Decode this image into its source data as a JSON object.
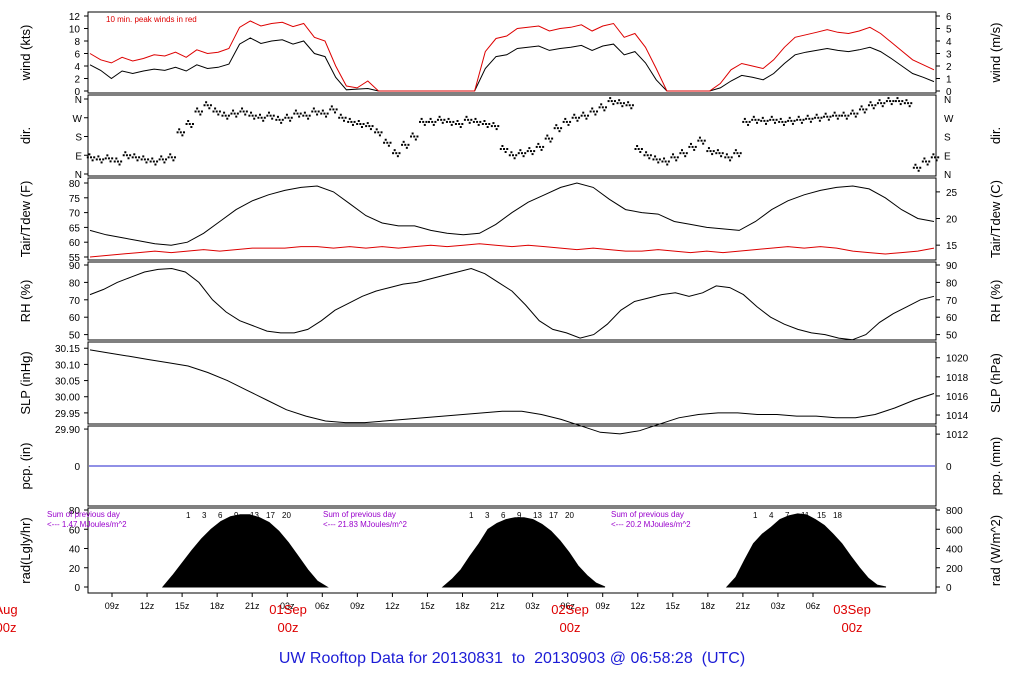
{
  "footer": {
    "title_prefix": "UW Rooftop Data for",
    "start": "20130831",
    "to_word": "to",
    "end": "20130903",
    "at_word": "@",
    "time": "06:58:28",
    "zone": "(UTC)"
  },
  "colors": {
    "frame": "#000000",
    "text": "#000000",
    "peak": "#dd0000",
    "tdew": "#dd0000",
    "precip": "#2222cc",
    "footer": "#1c1cd6",
    "date_labels": "#dd0000",
    "solar_notes": "#9900cc"
  },
  "chart_data": {
    "type": "line",
    "x_axis": {
      "tick_labels": [
        "09z",
        "12z",
        "15z",
        "18z",
        "21z",
        "03z",
        "06z",
        "09z",
        "12z",
        "15z",
        "18z",
        "21z",
        "03z",
        "06z",
        "09z",
        "12z",
        "15z",
        "18z",
        "21z",
        "03z",
        "06z"
      ],
      "date_labels": [
        {
          "line1": "Aug",
          "line2": "00z"
        },
        {
          "line1": "01Sep",
          "line2": "00z"
        },
        {
          "line1": "02Sep",
          "line2": "00z"
        },
        {
          "line1": "03Sep",
          "line2": "00z"
        }
      ]
    },
    "panels": [
      {
        "id": "wind",
        "type": "line",
        "ylabel_left": "wind (kts)",
        "ylabel_right": "wind (m/s)",
        "ylim": [
          0,
          12
        ],
        "yticks_left": [
          "0",
          "2",
          "4",
          "6",
          "8",
          "10",
          "12"
        ],
        "yticks_right": [
          "0",
          "1",
          "2",
          "3",
          "4",
          "5",
          "6"
        ],
        "annotation": "10 min. peak winds in red",
        "series": [
          {
            "values": [
              4.2,
              3.3,
              2,
              3.2,
              2.8,
              3.2,
              3.5,
              3.3,
              3.8,
              3.2,
              4.2,
              3.6,
              3.8,
              4.3,
              7.5,
              8.5,
              7.6,
              8,
              8.2,
              7.5,
              8,
              6,
              5.5,
              2.2,
              0.2,
              0.3,
              0.4,
              0,
              0,
              0,
              0,
              0,
              0,
              0,
              0,
              0,
              0,
              3.6,
              5.5,
              5.8,
              6.8,
              7,
              7.2,
              6.5,
              6.8,
              7,
              7.3,
              6.5,
              7.2,
              7.5,
              5.8,
              6.3,
              4.5,
              1.8,
              0,
              0,
              0,
              0,
              0,
              0.5,
              1.6,
              2.5,
              2.2,
              1.8,
              2.8,
              4.4,
              5.8,
              6.2,
              6.5,
              6.8,
              6.5,
              6.3,
              6.6,
              7,
              6.3,
              5.2,
              4,
              2.8,
              2.2,
              1.5
            ]
          },
          {
            "name": "10 min. peak winds",
            "values": [
              6,
              5,
              4.5,
              5.4,
              4.8,
              5.2,
              5.8,
              5.6,
              6.2,
              5.4,
              6.6,
              6,
              6.2,
              6.8,
              10.2,
              11.2,
              10.4,
              10.8,
              11,
              10.3,
              10.8,
              8.6,
              8,
              4,
              0.8,
              0.5,
              1.6,
              0,
              0,
              0,
              0,
              0,
              0,
              0,
              0,
              0,
              0,
              6.3,
              8.4,
              8.8,
              10,
              10.2,
              10.4,
              9.6,
              10,
              10.2,
              10.6,
              9.6,
              10.4,
              10.8,
              8.6,
              9.2,
              7,
              3.6,
              0,
              0,
              0,
              0,
              0,
              1.2,
              3.4,
              4.4,
              4,
              3.6,
              5,
              7,
              8.6,
              9,
              9.4,
              9.8,
              9.4,
              9.2,
              9.6,
              10.2,
              9.2,
              7.8,
              6.4,
              5,
              4.2,
              3.4
            ]
          }
        ]
      },
      {
        "id": "dir",
        "type": "scatter",
        "ylabel_left": "dir.",
        "ylabel_right": "dir.",
        "yticks": [
          "N",
          "E",
          "S",
          "W",
          "N"
        ],
        "ylim": [
          0,
          360
        ],
        "series": [
          {
            "values": [
              80,
              70,
              75,
              60,
              90,
              80,
              70,
              60,
              70,
              80,
              200,
              240,
              300,
              330,
              300,
              280,
              290,
              300,
              280,
              270,
              280,
              260,
              270,
              290,
              280,
              300,
              290,
              310,
              270,
              250,
              240,
              230,
              200,
              150,
              100,
              140,
              180,
              250,
              250,
              260,
              250,
              240,
              260,
              250,
              240,
              230,
              120,
              90,
              100,
              110,
              130,
              170,
              220,
              250,
              270,
              280,
              300,
              320,
              350,
              340,
              330,
              120,
              90,
              70,
              60,
              80,
              100,
              130,
              160,
              110,
              100,
              80,
              100,
              250,
              260,
              255,
              260,
              250,
              255,
              260,
              265,
              270,
              275,
              280,
              280,
              290,
              310,
              330,
              340,
              350,
              350,
              340,
              30,
              60,
              80
            ]
          }
        ]
      },
      {
        "id": "temp",
        "type": "line",
        "ylabel_left": "Tair/Tdew (F)",
        "ylabel_right": "Tair/Tdew (C)",
        "ylim": [
          55,
          80
        ],
        "yticks_left": [
          "55",
          "60",
          "65",
          "70",
          "75",
          "80"
        ],
        "yticks_right": [
          "15",
          "20",
          "25"
        ],
        "series": [
          {
            "name": "Tair",
            "values": [
              64,
              62.5,
              61.5,
              60.5,
              59.5,
              59,
              60,
              63,
              67,
              71,
              74,
              76,
              77.5,
              78.5,
              79,
              77,
              73,
              69,
              66.5,
              65.5,
              65.5,
              64,
              63,
              62.5,
              63,
              66,
              70,
              73.5,
              76,
              78.5,
              80,
              78.5,
              74.5,
              71,
              70,
              69.5,
              67,
              66,
              65,
              64.5,
              64,
              67,
              71,
              74,
              76,
              77.5,
              78.5,
              79,
              78,
              75,
              71,
              68,
              67
            ]
          },
          {
            "name": "Tdew",
            "values": [
              55,
              55.5,
              56,
              56.5,
              57,
              56.5,
              57,
              57.5,
              57,
              57.5,
              58,
              58,
              58,
              58.5,
              58.5,
              58,
              58.5,
              58,
              58.5,
              58,
              58.5,
              59,
              58.5,
              59,
              59.5,
              59,
              58.5,
              59,
              58.5,
              58,
              57.5,
              58,
              57.5,
              57,
              57,
              57.5,
              57,
              56.5,
              57,
              56.5,
              57,
              57.5,
              58,
              58.5,
              58,
              58.5,
              58,
              57,
              56.5,
              56,
              56.5,
              57,
              58
            ]
          }
        ]
      },
      {
        "id": "rh",
        "type": "line",
        "ylabel_left": "RH (%)",
        "ylabel_right": "RH (%)",
        "ylim": [
          40,
          90
        ],
        "yticks_left": [
          "50",
          "60",
          "70",
          "80",
          "90"
        ],
        "yticks_right": [
          "50",
          "60",
          "70",
          "80",
          "90"
        ],
        "series": [
          {
            "values": [
              73,
              76,
              80,
              83,
              86,
              87.5,
              88,
              86,
              80,
              70,
              63,
              58,
              55,
              52,
              51,
              51,
              53,
              58,
              64,
              68,
              72,
              75,
              77,
              79,
              80,
              82,
              84,
              86,
              88,
              85,
              80,
              75,
              67,
              58,
              53,
              51,
              48,
              50,
              56,
              64,
              69,
              71,
              73,
              74,
              72,
              74,
              78,
              77,
              73,
              66,
              60,
              56,
              53,
              51,
              50,
              48,
              47,
              50,
              57,
              62,
              66,
              70,
              72
            ]
          }
        ]
      },
      {
        "id": "slp",
        "type": "line",
        "ylabel_left": "SLP (inHg)",
        "ylabel_right": "SLP (hPa)",
        "ylim": [
          29.86,
          30.16
        ],
        "yticks_left": [
          "29.90",
          "29.95",
          "30.00",
          "30.05",
          "30.10",
          "30.15"
        ],
        "yticks_right": [
          "1012",
          "1014",
          "1016",
          "1018",
          "1020"
        ],
        "series": [
          {
            "values": [
              30.145,
              30.135,
              30.125,
              30.115,
              30.105,
              30.095,
              30.075,
              30.05,
              30.02,
              29.99,
              29.96,
              29.94,
              29.925,
              29.92,
              29.92,
              29.925,
              29.93,
              29.935,
              29.94,
              29.945,
              29.95,
              29.955,
              29.955,
              29.945,
              29.93,
              29.91,
              29.89,
              29.885,
              29.895,
              29.915,
              29.935,
              29.945,
              29.95,
              29.95,
              29.945,
              29.945,
              29.94,
              29.94,
              29.935,
              29.935,
              29.945,
              29.965,
              29.99,
              30.01
            ]
          }
        ]
      },
      {
        "id": "pcp",
        "type": "line",
        "ylabel_left": "pcp. (in)",
        "ylabel_right": "pcp. (mm)",
        "yticks_left": [
          "0"
        ],
        "yticks_right": [
          "0"
        ],
        "series": [
          {
            "values": [
              0,
              0
            ]
          }
        ]
      },
      {
        "id": "rad",
        "type": "area",
        "ylabel_left": "rad(Lgly/hr)",
        "ylabel_right": "rad (W/m^2)",
        "ylim": [
          0,
          80
        ],
        "yticks_left": [
          "0",
          "20",
          "40",
          "60",
          "80"
        ],
        "yticks_right": [
          "0",
          "200",
          "400",
          "600",
          "800"
        ],
        "day_notes": [
          {
            "line1": "Sum of previous day",
            "line2": "<--- 1.47 MJoules/m^2"
          },
          {
            "line1": "Sum of previous day",
            "line2": "<--- 21.83 MJoules/m^2"
          },
          {
            "line1": "Sum of previous day",
            "line2": "<--- 20.2 MJoules/m^2"
          }
        ],
        "hour_marks": [
          [
            "1",
            "3",
            "6",
            "9",
            "13",
            "17",
            "20"
          ],
          [
            "1",
            "3",
            "6",
            "9",
            "13",
            "17",
            "20"
          ],
          [
            "1",
            "4",
            "7",
            "11",
            "15",
            "18"
          ]
        ],
        "series": [
          {
            "name": "day1",
            "values": [
              0,
              12,
              25,
              38,
              50,
              60,
              68,
              73,
              75,
              75,
              72,
              67,
              58,
              46,
              32,
              18,
              6,
              0
            ]
          },
          {
            "name": "day2",
            "values": [
              0,
              8,
              18,
              32,
              45,
              60,
              66,
              70,
              72,
              72,
              70,
              65,
              58,
              48,
              36,
              22,
              12,
              4,
              0
            ]
          },
          {
            "name": "day3",
            "values": [
              0,
              10,
              28,
              45,
              55,
              62,
              70,
              74,
              76,
              75,
              70,
              64,
              55,
              45,
              32,
              20,
              9,
              2,
              0
            ]
          }
        ]
      }
    ]
  }
}
